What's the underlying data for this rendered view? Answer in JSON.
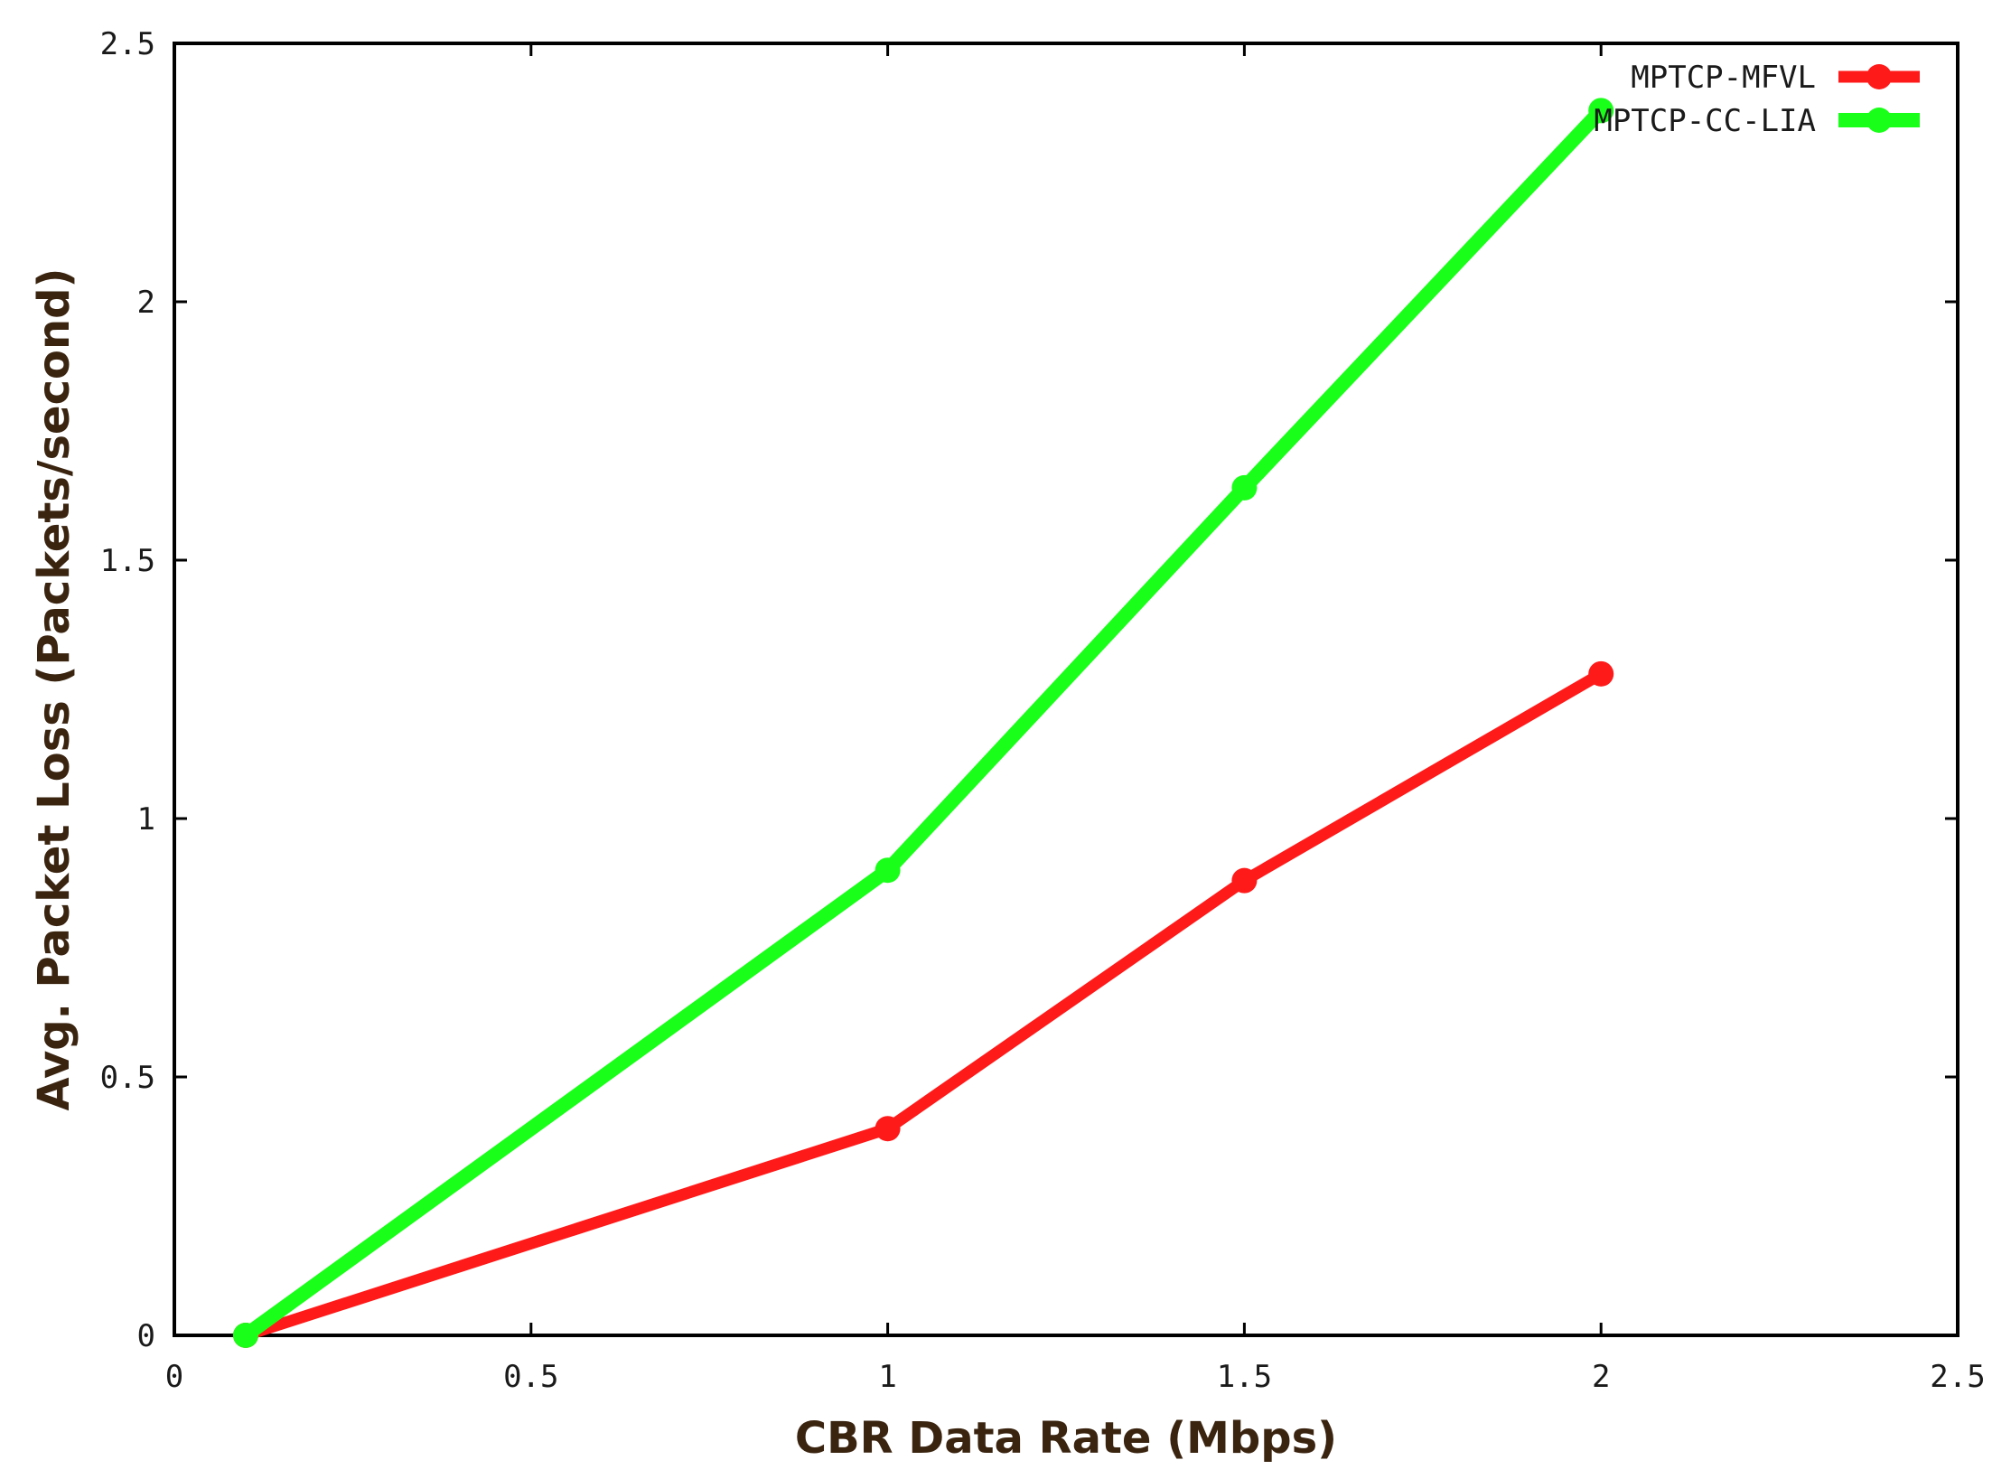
{
  "chart_data": {
    "type": "line",
    "xlabel": "CBR Data Rate (Mbps)",
    "ylabel": "Avg. Packet Loss (Packets/second)",
    "xlim": [
      0,
      2.5
    ],
    "ylim": [
      0,
      2.5
    ],
    "x_ticks": [
      "0",
      "0.5",
      "1",
      "1.5",
      "2",
      "2.5"
    ],
    "y_ticks": [
      "0",
      "0.5",
      "1",
      "1.5",
      "2",
      "2.5"
    ],
    "grid": false,
    "legend_position": "top-right",
    "series": [
      {
        "name": "MPTCP-MFVL",
        "color": "#ff1a1a",
        "x": [
          0.1,
          1,
          1.5,
          2
        ],
        "y": [
          0,
          0.4,
          0.88,
          1.28
        ]
      },
      {
        "name": "MPTCP-CC-LIA",
        "color": "#19ff19",
        "x": [
          0.1,
          1,
          1.5,
          2
        ],
        "y": [
          0,
          0.9,
          1.64,
          2.37
        ]
      }
    ]
  }
}
